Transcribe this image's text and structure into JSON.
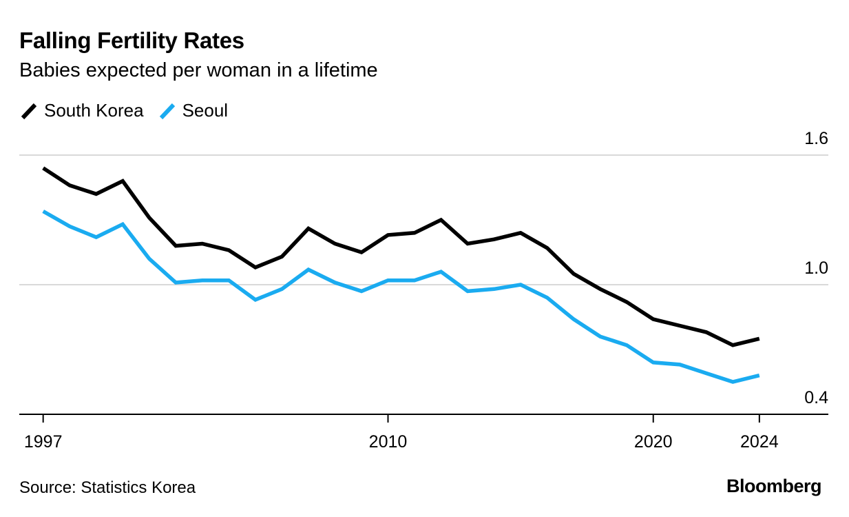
{
  "title": "Falling Fertility Rates",
  "subtitle": "Babies expected per woman in a lifetime",
  "source": "Source: Statistics Korea",
  "brand": "Bloomberg",
  "legend": [
    {
      "name": "South Korea",
      "color": "#000000"
    },
    {
      "name": "Seoul",
      "color": "#1AABF0"
    }
  ],
  "chart_data": {
    "type": "line",
    "title": "Falling Fertility Rates",
    "subtitle": "Babies expected per woman in a lifetime",
    "xlabel": "",
    "ylabel": "",
    "x": [
      1997,
      1998,
      1999,
      2000,
      2001,
      2002,
      2003,
      2004,
      2005,
      2006,
      2007,
      2008,
      2009,
      2010,
      2011,
      2012,
      2013,
      2014,
      2015,
      2016,
      2017,
      2018,
      2019,
      2020,
      2021,
      2022,
      2023,
      2024
    ],
    "xticks": [
      1997,
      2010,
      2020,
      2024
    ],
    "xlim": [
      1996.1,
      2026.6
    ],
    "ylim": [
      0.4,
      1.6
    ],
    "yticks": [
      0.4,
      1.0,
      1.6
    ],
    "ytick_labels": [
      "0.4",
      "1.0",
      "1.6"
    ],
    "ytick_side": "right",
    "grid": "horizontal",
    "legend_position": "top-left",
    "series": [
      {
        "name": "South Korea",
        "color": "#000000",
        "values": [
          1.54,
          1.46,
          1.42,
          1.48,
          1.31,
          1.18,
          1.19,
          1.16,
          1.08,
          1.13,
          1.26,
          1.19,
          1.15,
          1.23,
          1.24,
          1.3,
          1.19,
          1.21,
          1.24,
          1.17,
          1.05,
          0.98,
          0.92,
          0.84,
          0.81,
          0.78,
          0.72,
          0.75
        ]
      },
      {
        "name": "Seoul",
        "color": "#1AABF0",
        "values": [
          1.34,
          1.27,
          1.22,
          1.28,
          1.12,
          1.01,
          1.02,
          1.02,
          0.93,
          0.98,
          1.07,
          1.01,
          0.97,
          1.02,
          1.02,
          1.06,
          0.97,
          0.98,
          1.0,
          0.94,
          0.84,
          0.76,
          0.72,
          0.64,
          0.63,
          0.59,
          0.55,
          0.58
        ]
      }
    ]
  }
}
